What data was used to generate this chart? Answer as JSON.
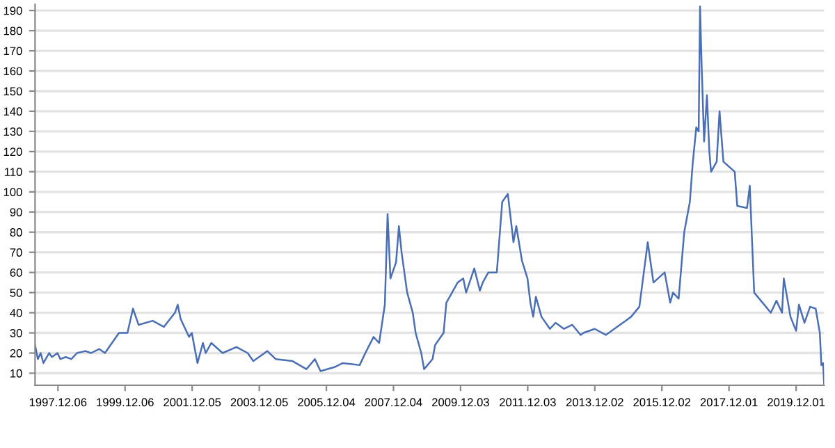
{
  "chart_data": {
    "type": "line",
    "x": [
      "1997-04-01",
      "1997-05-01",
      "1997-06-01",
      "1997-07-01",
      "1997-09-01",
      "1997-10-01",
      "1997-12-01",
      "1998-01-01",
      "1998-03-01",
      "1998-05-01",
      "1998-07-01",
      "1998-10-01",
      "1998-12-01",
      "1999-03-01",
      "1999-05-01",
      "1999-07-01",
      "1999-10-01",
      "2000-01-01",
      "2000-03-01",
      "2000-05-01",
      "2000-10-01",
      "2001-02-01",
      "2001-06-01",
      "2001-07-01",
      "2001-08-01",
      "2001-11-01",
      "2001-12-01",
      "2002-02-01",
      "2002-04-01",
      "2002-05-01",
      "2002-07-01",
      "2002-11-01",
      "2003-04-01",
      "2003-08-01",
      "2003-10-01",
      "2004-02-01",
      "2004-03-01",
      "2004-06-01",
      "2004-12-01",
      "2005-05-01",
      "2005-08-01",
      "2005-10-01",
      "2006-03-01",
      "2006-06-01",
      "2006-12-01",
      "2007-02-01",
      "2007-05-01",
      "2007-07-01",
      "2007-09-01",
      "2007-10-01",
      "2007-11-01",
      "2008-01-01",
      "2008-02-01",
      "2008-03-01",
      "2008-05-01",
      "2008-07-01",
      "2008-08-01",
      "2008-10-01",
      "2008-11-01",
      "2009-02-01",
      "2009-03-01",
      "2009-06-01",
      "2009-07-01",
      "2009-09-01",
      "2009-11-01",
      "2010-01-01",
      "2010-02-01",
      "2010-05-01",
      "2010-07-01",
      "2010-08-01",
      "2010-10-01",
      "2011-01-01",
      "2011-03-01",
      "2011-05-01",
      "2011-07-01",
      "2011-08-01",
      "2011-10-01",
      "2011-12-01",
      "2012-01-01",
      "2012-02-01",
      "2012-03-01",
      "2012-05-01",
      "2012-08-01",
      "2012-10-01",
      "2013-01-01",
      "2013-04-01",
      "2013-07-01",
      "2013-08-01",
      "2013-12-01",
      "2014-04-01",
      "2014-11-01",
      "2015-01-01",
      "2015-04-01",
      "2015-07-01",
      "2015-09-01",
      "2016-01-01",
      "2016-03-01",
      "2016-04-01",
      "2016-06-01",
      "2016-08-01",
      "2016-10-01",
      "2016-11-01",
      "2016-12-10",
      "2017-01-05",
      "2017-01-20",
      "2017-02-05",
      "2017-03-05",
      "2017-04-05",
      "2017-05-01",
      "2017-05-20",
      "2017-07-20",
      "2017-08-20",
      "2017-10-01",
      "2018-02-01",
      "2018-03-01",
      "2018-06-15",
      "2018-07-15",
      "2018-09-01",
      "2018-12-01",
      "2019-03-01",
      "2019-05-01",
      "2019-07-01",
      "2019-07-20",
      "2019-10-01",
      "2019-12-01",
      "2020-01-01",
      "2020-03-01",
      "2020-05-01",
      "2020-07-01",
      "2020-08-15",
      "2020-09-01",
      "2020-09-20",
      "2020-10-01"
    ],
    "series": [
      {
        "color": "#4a6fb5",
        "values": [
          24,
          17,
          20,
          15,
          20,
          18,
          20,
          17,
          18,
          17,
          20,
          21,
          20,
          22,
          20,
          24,
          30,
          30,
          42,
          34,
          36,
          33,
          40,
          44,
          37,
          28,
          30,
          15,
          25,
          20,
          25,
          20,
          23,
          20,
          16,
          20,
          21,
          17,
          16,
          12,
          17,
          11,
          13,
          15,
          14,
          20,
          28,
          25,
          44,
          89,
          57,
          65,
          83,
          70,
          50,
          40,
          30,
          20,
          12,
          17,
          24,
          30,
          45,
          50,
          55,
          57,
          50,
          62,
          51,
          55,
          60,
          60,
          95,
          99,
          75,
          83,
          66,
          57,
          45,
          38,
          48,
          38,
          32,
          35,
          32,
          34,
          29,
          30,
          32,
          29,
          36,
          38,
          43,
          75,
          55,
          60,
          45,
          50,
          47,
          80,
          95,
          114,
          132,
          130,
          192,
          165,
          125,
          148,
          120,
          110,
          115,
          140,
          115,
          110,
          93,
          92,
          103,
          50,
          45,
          40,
          46,
          40,
          57,
          38,
          31,
          44,
          35,
          43,
          42,
          30,
          14,
          15,
          4
        ]
      }
    ],
    "xlim": [
      "1997-04-01",
      "2020-10-01"
    ],
    "xticks": [
      {
        "value": "1997-12-06",
        "label": "1997.12.06"
      },
      {
        "value": "1999-12-06",
        "label": "1999.12.06"
      },
      {
        "value": "2001-12-05",
        "label": "2001.12.05"
      },
      {
        "value": "2003-12-05",
        "label": "2003.12.05"
      },
      {
        "value": "2005-12-04",
        "label": "2005.12.04"
      },
      {
        "value": "2007-12-04",
        "label": "2007.12.04"
      },
      {
        "value": "2009-12-03",
        "label": "2009.12.03"
      },
      {
        "value": "2011-12-03",
        "label": "2011.12.03"
      },
      {
        "value": "2013-12-02",
        "label": "2013.12.02"
      },
      {
        "value": "2015-12-02",
        "label": "2015.12.02"
      },
      {
        "value": "2017-12-01",
        "label": "2017.12.01"
      },
      {
        "value": "2019-12-01",
        "label": "2019.12.01"
      }
    ],
    "ylim": [
      4,
      193
    ],
    "yticks": [
      10,
      20,
      30,
      40,
      50,
      60,
      70,
      80,
      90,
      100,
      110,
      120,
      130,
      140,
      150,
      160,
      170,
      180,
      190
    ],
    "grid": "y"
  }
}
